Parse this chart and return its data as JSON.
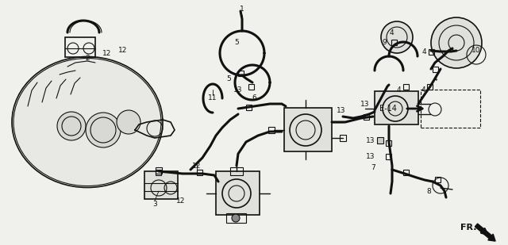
{
  "bg_color": "#f5f5f0",
  "line_color": "#1a1a1a",
  "fig_width": 6.4,
  "fig_height": 3.09,
  "dpi": 100,
  "gray": "#888888",
  "darkgray": "#555555"
}
